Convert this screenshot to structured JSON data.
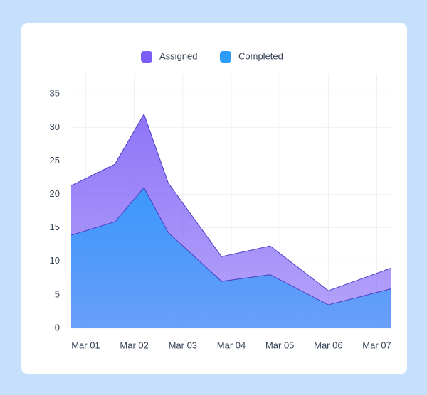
{
  "chart_data": {
    "type": "area",
    "x": [
      0.7,
      1.6,
      2.2,
      2.7,
      3.8,
      4.8,
      6,
      7.3
    ],
    "xlim": [
      0.7,
      7.3
    ],
    "xticks": [
      {
        "value": 1,
        "label": "Mar 01"
      },
      {
        "value": 2,
        "label": "Mar 02"
      },
      {
        "value": 3,
        "label": "Mar 03"
      },
      {
        "value": 4,
        "label": "Mar 04"
      },
      {
        "value": 5,
        "label": "Mar 05"
      },
      {
        "value": 6,
        "label": "Mar 06"
      },
      {
        "value": 7,
        "label": "Mar 07"
      }
    ],
    "ylim": [
      0,
      38
    ],
    "yticks": [
      0,
      5,
      10,
      15,
      20,
      25,
      30,
      35
    ],
    "grid": true,
    "legend": "top",
    "series": [
      {
        "name": "Assigned",
        "color": "#7b5cf6",
        "values": [
          21.3,
          24.5,
          32,
          21.7,
          10.7,
          12.3,
          5.6,
          9
        ]
      },
      {
        "name": "Completed",
        "color": "#2b9cfa",
        "values": [
          13.9,
          15.9,
          21,
          14.3,
          7,
          8,
          3.5,
          5.9
        ]
      }
    ]
  }
}
